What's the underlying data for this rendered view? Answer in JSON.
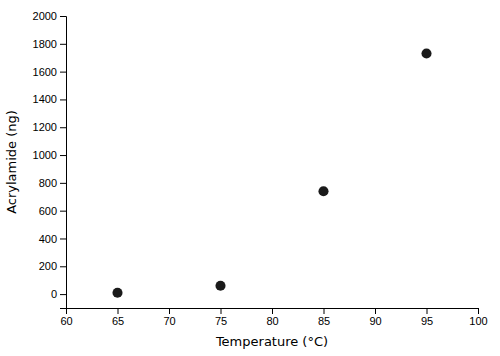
{
  "chart_data": {
    "type": "scatter",
    "x": [
      65,
      75,
      85,
      95
    ],
    "y": [
      10,
      60,
      740,
      1730
    ],
    "xlabel": "Temperature (°C)",
    "ylabel": "Acrylamide (ng)",
    "xlim": [
      60,
      100
    ],
    "ylim": [
      -100,
      2000
    ],
    "xticks": [
      60,
      65,
      70,
      75,
      80,
      85,
      90,
      95,
      100
    ],
    "yticks": [
      0,
      200,
      400,
      600,
      800,
      1000,
      1200,
      1400,
      1600,
      1800,
      2000
    ],
    "marker": "circle",
    "color": "#1a1a1a"
  }
}
